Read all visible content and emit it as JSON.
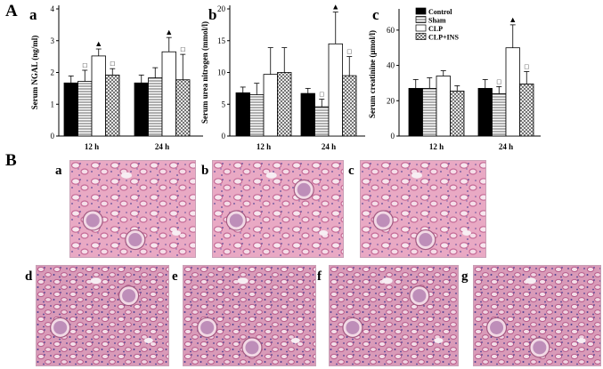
{
  "section_labels": {
    "a": "A",
    "b": "B"
  },
  "chart_data": [
    {
      "type": "bar",
      "panel": "a",
      "ylabel": "Serum NGAL (ng/ml)",
      "ylim": [
        0,
        4
      ],
      "yticks": [
        "0",
        "1",
        "2",
        "3",
        "4"
      ],
      "categories": [
        "12 h",
        "24 h"
      ],
      "series": [
        {
          "name": "Control",
          "values": [
            1.67,
            1.67
          ],
          "errors": [
            0.22,
            0.25
          ]
        },
        {
          "name": "Sham",
          "values": [
            1.72,
            1.83
          ],
          "errors": [
            0.35,
            0.32
          ]
        },
        {
          "name": "CLP",
          "values": [
            2.52,
            2.65
          ],
          "errors": [
            0.22,
            0.45
          ]
        },
        {
          "name": "CLP+INS",
          "values": [
            1.92,
            1.77
          ],
          "errors": [
            0.2,
            0.8
          ]
        }
      ],
      "markers": [
        {
          "group": 0,
          "series": 1,
          "symbol": "□"
        },
        {
          "group": 0,
          "series": 2,
          "symbol": "▲"
        },
        {
          "group": 0,
          "series": 3,
          "symbol": "□"
        },
        {
          "group": 1,
          "series": 2,
          "symbol": "▲"
        },
        {
          "group": 1,
          "series": 3,
          "symbol": "□"
        }
      ]
    },
    {
      "type": "bar",
      "panel": "b",
      "ylabel": "Serum urea nitrogen (mmol/l)",
      "ylim": [
        0,
        20
      ],
      "yticks": [
        "0",
        "5",
        "10",
        "15",
        "20"
      ],
      "categories": [
        "12 h",
        "24 h"
      ],
      "series": [
        {
          "name": "Control",
          "values": [
            6.8,
            6.7
          ],
          "errors": [
            0.9,
            0.8
          ]
        },
        {
          "name": "Sham",
          "values": [
            6.5,
            4.6
          ],
          "errors": [
            1.8,
            1.2
          ]
        },
        {
          "name": "CLP",
          "values": [
            9.7,
            14.5
          ],
          "errors": [
            4.2,
            5.0
          ]
        },
        {
          "name": "CLP+INS",
          "values": [
            10.0,
            9.5
          ],
          "errors": [
            3.9,
            3.0
          ]
        }
      ],
      "markers": [
        {
          "group": 1,
          "series": 1,
          "symbol": "□"
        },
        {
          "group": 1,
          "series": 2,
          "symbol": "▲"
        },
        {
          "group": 1,
          "series": 3,
          "symbol": "□"
        }
      ]
    },
    {
      "type": "bar",
      "panel": "c",
      "ylabel": "Serum creatinine (μmol/l)",
      "ylim": [
        0,
        70
      ],
      "yticks": [
        "0",
        "20",
        "40",
        "60"
      ],
      "categories": [
        "12 h",
        "24 h"
      ],
      "legend": {
        "placement": "top-left"
      },
      "series": [
        {
          "name": "Control",
          "values": [
            27,
            27
          ],
          "errors": [
            5,
            5
          ]
        },
        {
          "name": "Sham",
          "values": [
            27,
            24
          ],
          "errors": [
            6,
            4
          ]
        },
        {
          "name": "CLP",
          "values": [
            34,
            50
          ],
          "errors": [
            3,
            13
          ]
        },
        {
          "name": "CLP+INS",
          "values": [
            25.5,
            29.5
          ],
          "errors": [
            3,
            7
          ]
        }
      ],
      "markers": [
        {
          "group": 1,
          "series": 1,
          "symbol": "□"
        },
        {
          "group": 1,
          "series": 2,
          "symbol": "▲"
        },
        {
          "group": 1,
          "series": 3,
          "symbol": "□"
        }
      ]
    }
  ],
  "micrographs": [
    {
      "label": "a"
    },
    {
      "label": "b"
    },
    {
      "label": "c"
    },
    {
      "label": "d"
    },
    {
      "label": "e"
    },
    {
      "label": "f"
    },
    {
      "label": "g"
    }
  ]
}
